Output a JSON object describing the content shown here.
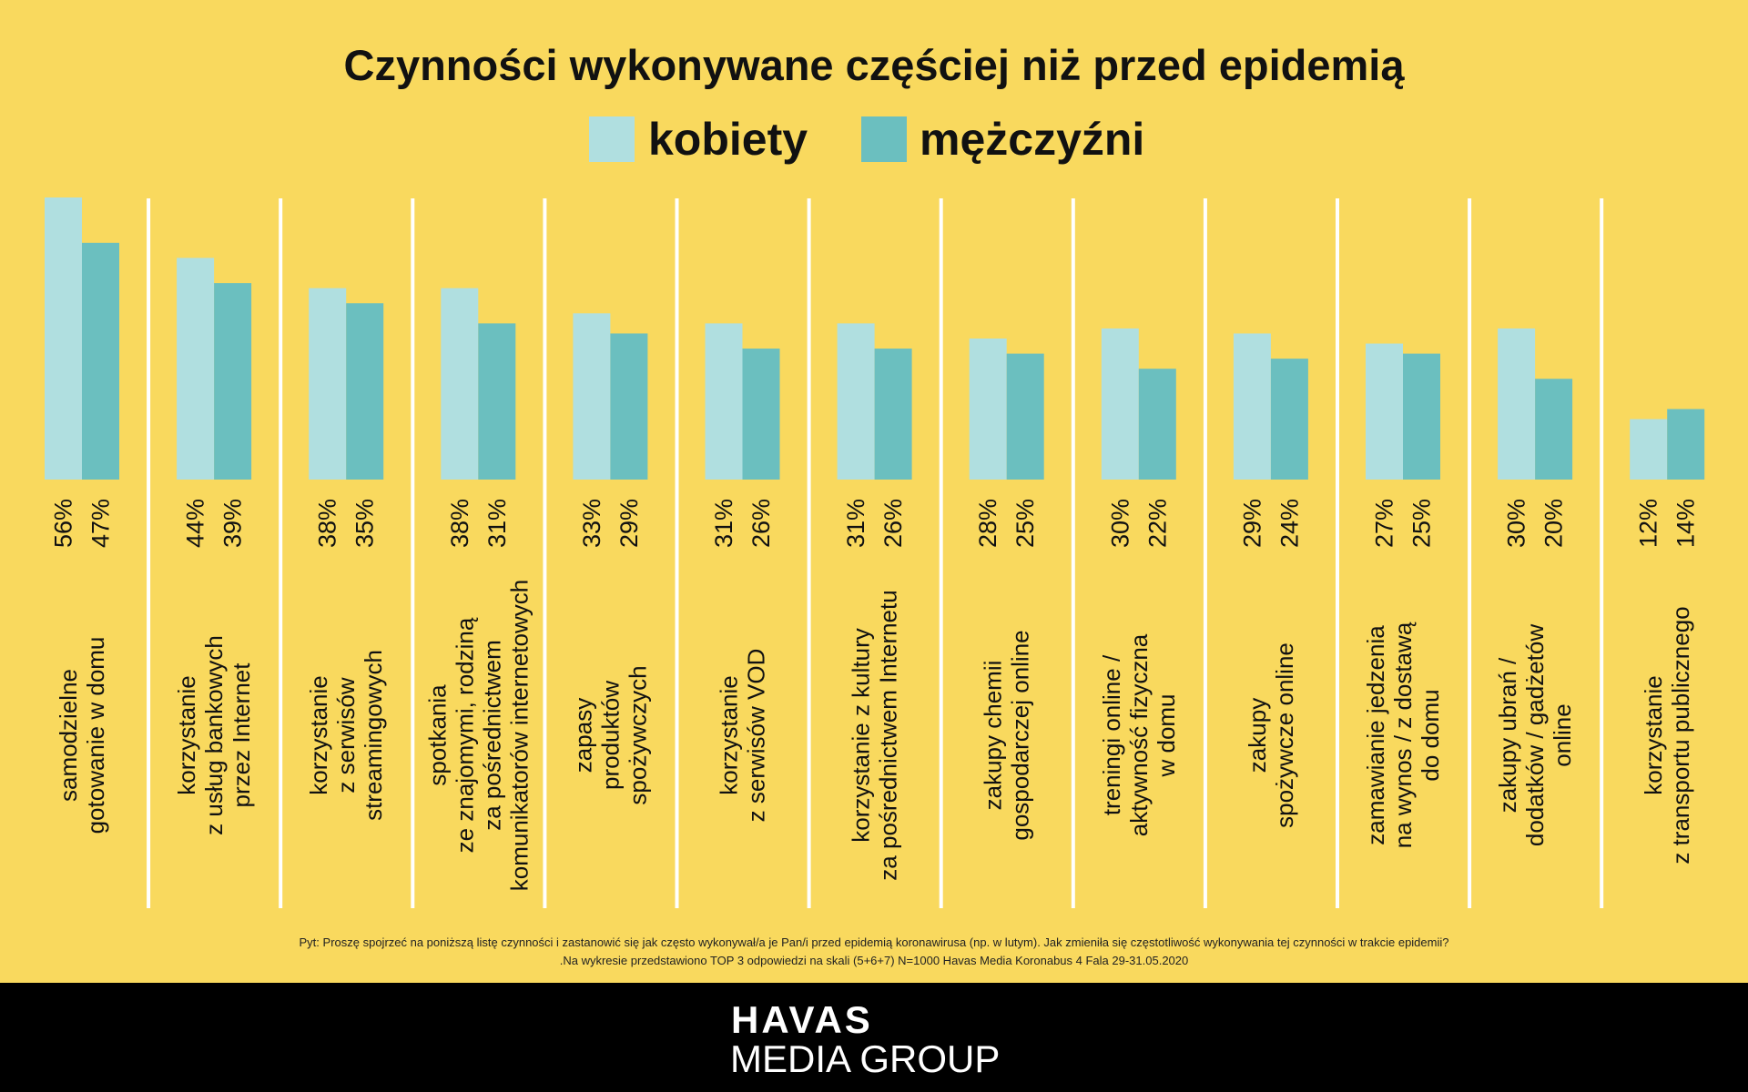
{
  "chart_data": {
    "type": "bar",
    "title": "Czynności wykonywane częściej niż przed epidemią",
    "legend": [
      "kobiety",
      "mężczyźni"
    ],
    "legend_placement": "top-center",
    "colors": {
      "kobiety": "#b0dfe0",
      "mężczyźni": "#6bbfbf",
      "background": "#f9d95e",
      "divider": "#ffffff"
    },
    "categories": [
      [
        "samodzielne",
        "gotowanie w domu"
      ],
      [
        "korzystanie",
        "z usług bankowych",
        "przez Internet"
      ],
      [
        "korzystanie",
        "z serwisów",
        "streamingowych"
      ],
      [
        "spotkania",
        "ze znajomymi, rodziną",
        "za pośrednictwem",
        "komunikatorów internetowych"
      ],
      [
        "zapasy",
        "produktów",
        "spożywczych"
      ],
      [
        "korzystanie",
        "z serwisów VOD"
      ],
      [
        "korzystanie z kultury",
        "za pośrednictwem Internetu"
      ],
      [
        "zakupy chemii",
        "gospodarczej online"
      ],
      [
        "treningi online /",
        "aktywność fizyczna",
        "w domu"
      ],
      [
        "zakupy",
        "spożywcze online"
      ],
      [
        "zamawianie jedzenia",
        "na wynos / z dostawą",
        "do domu"
      ],
      [
        "zakupy ubrań /",
        "dodatków / gadżetów",
        "online"
      ],
      [
        "korzystanie",
        "z transportu publicznego"
      ]
    ],
    "series": [
      {
        "name": "kobiety",
        "values": [
          56,
          44,
          38,
          38,
          33,
          31,
          31,
          28,
          30,
          29,
          27,
          30,
          12
        ]
      },
      {
        "name": "mężczyźni",
        "values": [
          47,
          39,
          35,
          31,
          29,
          26,
          26,
          25,
          22,
          24,
          25,
          20,
          14
        ]
      }
    ],
    "value_suffix": "%",
    "ylim": [
      0,
      56
    ],
    "grid": false,
    "notes": [
      "Pyt: Proszę spojrzeć na poniższą listę czynności i zastanowić się jak często wykonywał/a je Pan/i przed epidemią koronawirusa (np. w lutym). Jak zmieniła się częstotliwość wykonywania tej czynności w trakcie epidemii?",
      ".Na wykresie przedstawiono TOP 3 odpowiedzi na skali (5+6+7) N=1000    Havas Media Koronabus 4 Fala 29-31.05.2020"
    ]
  },
  "footer": {
    "logo_top": "HAVAS",
    "logo_bottom": "MEDIA GROUP"
  }
}
